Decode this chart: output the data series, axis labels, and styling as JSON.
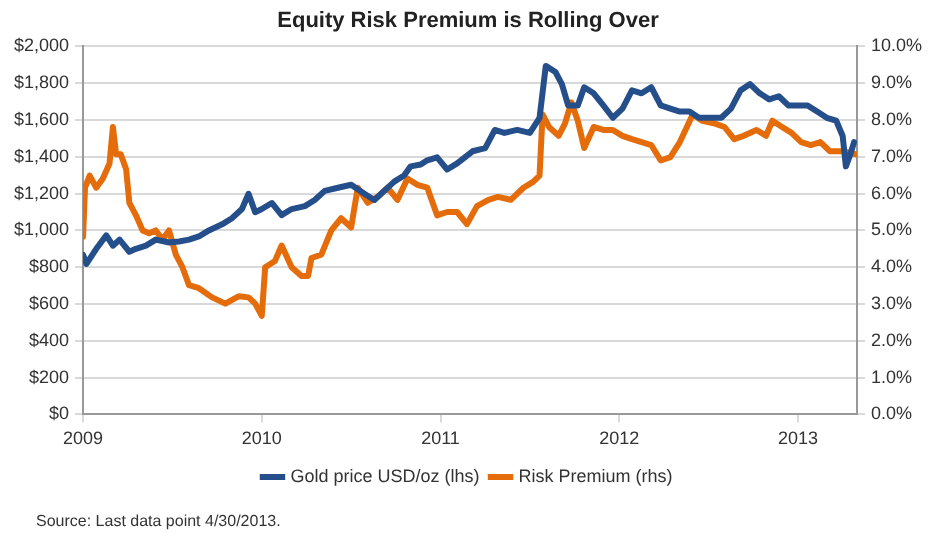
{
  "chart_data": {
    "type": "line",
    "title": "Equity Risk Premium is Rolling Over",
    "annotations": [
      "Source: Last data point 4/30/2013."
    ],
    "xlim": [
      2009,
      2013.33
    ],
    "xticks": [
      2009,
      2010,
      2011,
      2012,
      2013
    ],
    "ylim": [
      0,
      2000
    ],
    "yticks": [
      {
        "value": 0,
        "label": "$0"
      },
      {
        "value": 200,
        "label": "$200"
      },
      {
        "value": 400,
        "label": "$400"
      },
      {
        "value": 600,
        "label": "$600"
      },
      {
        "value": 800,
        "label": "$800"
      },
      {
        "value": 1000,
        "label": "$1,000"
      },
      {
        "value": 1200,
        "label": "$1,200"
      },
      {
        "value": 1400,
        "label": "$1,400"
      },
      {
        "value": 1600,
        "label": "$1,600"
      },
      {
        "value": 1800,
        "label": "$1,800"
      },
      {
        "value": 2000,
        "label": "$2,000"
      }
    ],
    "y2lim": [
      0,
      10
    ],
    "y2ticks": [
      {
        "value": 0,
        "label": "0.0%"
      },
      {
        "value": 1,
        "label": "1.0%"
      },
      {
        "value": 2,
        "label": "2.0%"
      },
      {
        "value": 3,
        "label": "3.0%"
      },
      {
        "value": 4,
        "label": "4.0%"
      },
      {
        "value": 5,
        "label": "5.0%"
      },
      {
        "value": 6,
        "label": "6.0%"
      },
      {
        "value": 7,
        "label": "7.0%"
      },
      {
        "value": 8,
        "label": "8.0%"
      },
      {
        "value": 9,
        "label": "9.0%"
      },
      {
        "value": 10,
        "label": "10.0%"
      }
    ],
    "grid": "y",
    "legend": "bottom",
    "marker": "none",
    "line_style": "solid",
    "series": [
      {
        "name": "Gold price USD/oz (lhs)",
        "color": "#254f8a",
        "x": [
          2009.0,
          2009.019,
          2009.074,
          2009.13,
          2009.167,
          2009.204,
          2009.259,
          2009.296,
          2009.352,
          2009.407,
          2009.481,
          2009.537,
          2009.593,
          2009.648,
          2009.704,
          2009.778,
          2009.833,
          2009.889,
          2009.926,
          2009.963,
          2010.0,
          2010.056,
          2010.111,
          2010.167,
          2010.241,
          2010.296,
          2010.352,
          2010.426,
          2010.5,
          2010.574,
          2010.63,
          2010.685,
          2010.741,
          2010.796,
          2010.833,
          2010.889,
          2010.926,
          2010.981,
          2011.037,
          2011.093,
          2011.179,
          2011.25,
          2011.304,
          2011.357,
          2011.429,
          2011.5,
          2011.554,
          2011.589,
          2011.643,
          2011.679,
          2011.714,
          2011.768,
          2011.804,
          2011.857,
          2011.911,
          2011.964,
          2012.018,
          2012.071,
          2012.125,
          2012.179,
          2012.232,
          2012.286,
          2012.339,
          2012.393,
          2012.446,
          2012.518,
          2012.571,
          2012.625,
          2012.679,
          2012.732,
          2012.786,
          2012.839,
          2012.893,
          2012.946,
          2013.0,
          2013.054,
          2013.107,
          2013.161,
          2013.214,
          2013.25,
          2013.268,
          2013.293,
          2013.314
        ],
        "values": [
          867,
          818,
          900,
          973,
          917,
          950,
          884,
          900,
          917,
          950,
          934,
          940,
          950,
          967,
          1000,
          1033,
          1066,
          1116,
          1199,
          1099,
          1116,
          1149,
          1083,
          1116,
          1132,
          1165,
          1215,
          1232,
          1248,
          1199,
          1165,
          1215,
          1265,
          1298,
          1348,
          1358,
          1381,
          1397,
          1331,
          1364,
          1430,
          1447,
          1546,
          1530,
          1546,
          1530,
          1612,
          1894,
          1861,
          1795,
          1679,
          1679,
          1778,
          1745,
          1679,
          1612,
          1662,
          1761,
          1745,
          1778,
          1679,
          1662,
          1646,
          1646,
          1612,
          1612,
          1612,
          1662,
          1761,
          1795,
          1745,
          1712,
          1729,
          1679,
          1679,
          1679,
          1646,
          1612,
          1596,
          1513,
          1348,
          1414,
          1480
        ]
      },
      {
        "name": "Risk Premium (rhs)",
        "color": "#e46c0a",
        "axis": "y2",
        "x": [
          2009.0,
          2009.011,
          2009.037,
          2009.074,
          2009.111,
          2009.148,
          2009.167,
          2009.185,
          2009.211,
          2009.241,
          2009.259,
          2009.296,
          2009.333,
          2009.37,
          2009.407,
          2009.444,
          2009.481,
          2009.519,
          2009.556,
          2009.593,
          2009.648,
          2009.722,
          2009.796,
          2009.87,
          2009.926,
          2009.963,
          2010.0,
          2010.019,
          2010.074,
          2010.111,
          2010.167,
          2010.222,
          2010.259,
          2010.278,
          2010.333,
          2010.389,
          2010.444,
          2010.5,
          2010.537,
          2010.593,
          2010.648,
          2010.704,
          2010.759,
          2010.815,
          2010.87,
          2010.926,
          2010.981,
          2011.037,
          2011.093,
          2011.148,
          2011.204,
          2011.268,
          2011.321,
          2011.393,
          2011.464,
          2011.518,
          2011.554,
          2011.571,
          2011.607,
          2011.661,
          2011.696,
          2011.732,
          2011.768,
          2011.804,
          2011.857,
          2011.911,
          2011.964,
          2012.018,
          2012.071,
          2012.125,
          2012.179,
          2012.232,
          2012.286,
          2012.339,
          2012.411,
          2012.464,
          2012.536,
          2012.589,
          2012.643,
          2012.696,
          2012.768,
          2012.821,
          2012.857,
          2012.911,
          2012.964,
          2013.018,
          2013.071,
          2013.125,
          2013.179,
          2013.25,
          2013.321
        ],
        "values": [
          4.83,
          6.16,
          6.49,
          6.16,
          6.41,
          6.82,
          7.81,
          7.07,
          7.07,
          6.66,
          5.75,
          5.41,
          5.0,
          4.92,
          5.0,
          4.75,
          5.0,
          4.34,
          4.0,
          3.51,
          3.43,
          3.18,
          3.01,
          3.21,
          3.18,
          3.01,
          2.68,
          4.0,
          4.17,
          4.59,
          4.0,
          3.76,
          3.76,
          4.25,
          4.34,
          5.0,
          5.33,
          5.08,
          6.16,
          5.75,
          5.91,
          6.16,
          5.83,
          6.41,
          6.24,
          6.16,
          5.41,
          5.5,
          5.5,
          5.17,
          5.66,
          5.83,
          5.91,
          5.83,
          6.16,
          6.32,
          6.49,
          8.15,
          7.81,
          7.57,
          7.9,
          8.48,
          7.98,
          7.24,
          7.81,
          7.73,
          7.73,
          7.57,
          7.48,
          7.4,
          7.32,
          6.9,
          6.99,
          7.4,
          8.15,
          7.98,
          7.9,
          7.81,
          7.48,
          7.57,
          7.73,
          7.57,
          7.98,
          7.81,
          7.65,
          7.4,
          7.32,
          7.4,
          7.15,
          7.15,
          7.07
        ]
      }
    ]
  }
}
